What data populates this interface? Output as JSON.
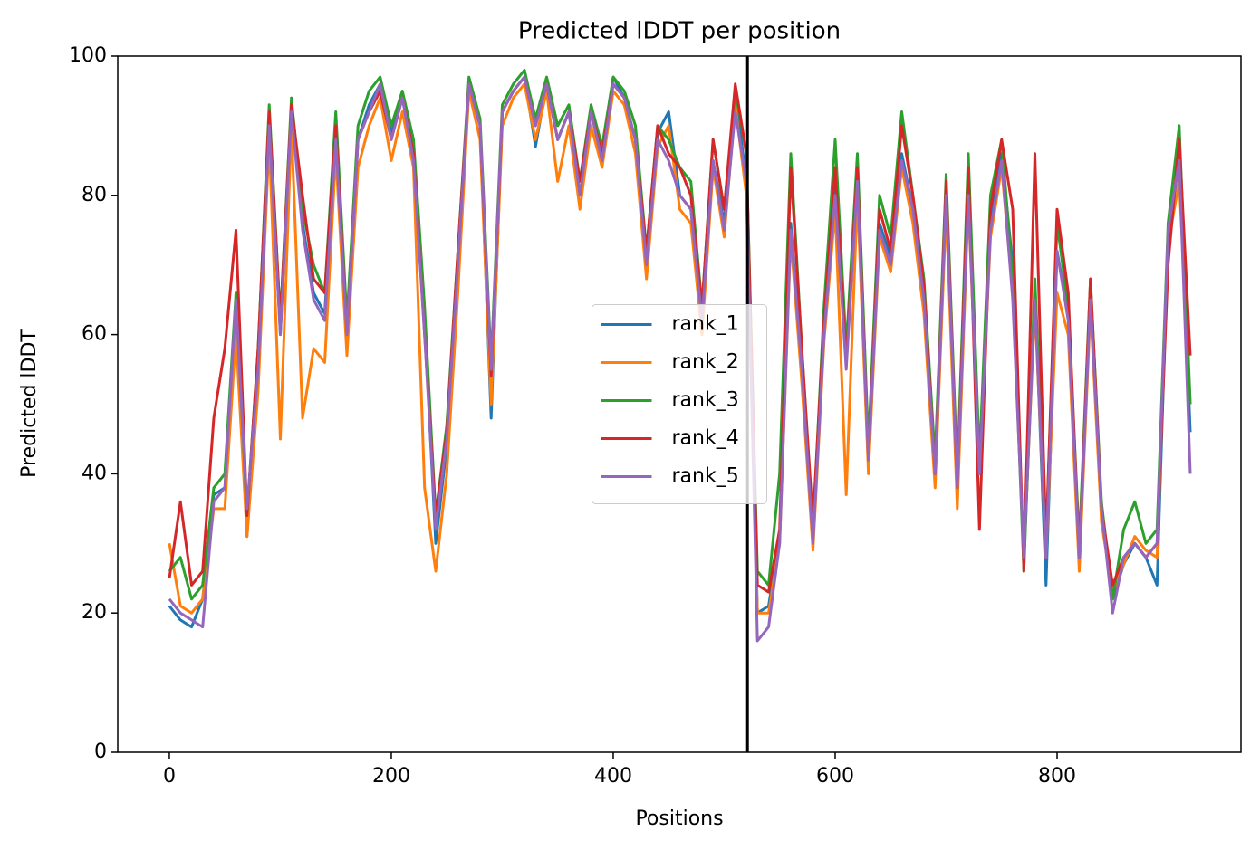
{
  "chart_data": {
    "type": "line",
    "title": "Predicted lDDT per position",
    "xlabel": "Positions",
    "ylabel": "Predicted lDDT",
    "x": [
      0,
      10,
      20,
      30,
      40,
      50,
      60,
      70,
      80,
      90,
      100,
      110,
      120,
      130,
      140,
      150,
      160,
      170,
      180,
      190,
      200,
      210,
      220,
      230,
      240,
      250,
      260,
      270,
      280,
      290,
      300,
      310,
      320,
      330,
      340,
      350,
      360,
      370,
      380,
      390,
      400,
      410,
      420,
      430,
      440,
      450,
      460,
      470,
      480,
      490,
      500,
      510,
      520,
      530,
      540,
      550,
      560,
      570,
      580,
      590,
      600,
      610,
      620,
      630,
      640,
      650,
      660,
      670,
      680,
      690,
      700,
      710,
      720,
      730,
      740,
      750,
      760,
      770,
      780,
      790,
      800,
      810,
      820,
      830,
      840,
      850,
      860,
      870,
      880,
      890,
      900,
      910,
      920
    ],
    "series": [
      {
        "name": "rank_1",
        "color": "#1f77b4",
        "values": [
          21,
          19,
          18,
          22,
          37,
          38,
          64,
          31,
          55,
          91,
          60,
          93,
          76,
          66,
          63,
          90,
          58,
          88,
          93,
          96,
          89,
          94,
          86,
          62,
          30,
          44,
          70,
          96,
          90,
          48,
          92,
          95,
          97,
          87,
          96,
          88,
          92,
          80,
          92,
          85,
          97,
          94,
          88,
          70,
          89,
          92,
          80,
          78,
          62,
          85,
          76,
          95,
          82,
          20,
          21,
          31,
          76,
          55,
          30,
          61,
          81,
          56,
          83,
          42,
          76,
          71,
          86,
          78,
          65,
          39,
          80,
          37,
          81,
          40,
          76,
          86,
          70,
          27,
          66,
          24,
          72,
          63,
          27,
          66,
          34,
          22,
          27,
          30,
          28,
          24,
          74,
          85,
          46
        ]
      },
      {
        "name": "rank_2",
        "color": "#ff7f0e",
        "values": [
          30,
          21,
          20,
          22,
          35,
          35,
          60,
          31,
          52,
          88,
          45,
          90,
          48,
          58,
          56,
          86,
          57,
          84,
          90,
          94,
          85,
          92,
          84,
          38,
          26,
          40,
          66,
          95,
          88,
          50,
          90,
          94,
          96,
          88,
          95,
          82,
          90,
          78,
          90,
          84,
          95,
          93,
          86,
          68,
          87,
          90,
          78,
          76,
          60,
          84,
          74,
          93,
          80,
          20,
          20,
          30,
          74,
          53,
          29,
          59,
          78,
          37,
          80,
          40,
          74,
          69,
          84,
          76,
          63,
          38,
          78,
          35,
          79,
          40,
          74,
          84,
          66,
          28,
          64,
          28,
          66,
          60,
          26,
          64,
          33,
          23,
          27,
          31,
          29,
          28,
          73,
          82,
          50
        ]
      },
      {
        "name": "rank_3",
        "color": "#2ca02c",
        "values": [
          26,
          28,
          22,
          24,
          38,
          40,
          66,
          34,
          58,
          93,
          62,
          94,
          78,
          70,
          66,
          92,
          62,
          90,
          95,
          97,
          90,
          95,
          88,
          64,
          34,
          47,
          72,
          97,
          91,
          56,
          93,
          96,
          98,
          91,
          97,
          90,
          93,
          82,
          93,
          87,
          97,
          95,
          90,
          72,
          90,
          88,
          84,
          82,
          64,
          88,
          78,
          95,
          86,
          26,
          24,
          40,
          86,
          58,
          32,
          64,
          88,
          58,
          86,
          44,
          80,
          74,
          92,
          80,
          68,
          42,
          83,
          40,
          86,
          42,
          80,
          88,
          68,
          26,
          68,
          30,
          76,
          64,
          30,
          68,
          36,
          22,
          32,
          36,
          30,
          32,
          76,
          90,
          50
        ]
      },
      {
        "name": "rank_4",
        "color": "#d62728",
        "values": [
          25,
          36,
          24,
          26,
          48,
          58,
          75,
          34,
          58,
          92,
          62,
          93,
          80,
          68,
          66,
          90,
          60,
          88,
          92,
          95,
          88,
          94,
          86,
          60,
          34,
          46,
          72,
          96,
          90,
          54,
          92,
          95,
          97,
          90,
          96,
          88,
          92,
          82,
          92,
          86,
          96,
          94,
          88,
          72,
          90,
          86,
          84,
          80,
          64,
          88,
          78,
          96,
          86,
          24,
          23,
          32,
          84,
          58,
          33,
          62,
          84,
          56,
          84,
          42,
          78,
          72,
          90,
          80,
          67,
          40,
          82,
          38,
          84,
          32,
          78,
          88,
          78,
          26,
          86,
          30,
          78,
          66,
          28,
          68,
          35,
          24,
          28,
          30,
          28,
          30,
          70,
          88,
          57
        ]
      },
      {
        "name": "rank_5",
        "color": "#9467bd",
        "values": [
          22,
          20,
          19,
          18,
          36,
          38,
          65,
          35,
          55,
          90,
          60,
          92,
          75,
          65,
          62,
          88,
          60,
          88,
          92,
          96,
          88,
          94,
          85,
          60,
          32,
          45,
          70,
          96,
          90,
          55,
          92,
          95,
          97,
          90,
          96,
          88,
          92,
          80,
          92,
          85,
          96,
          94,
          88,
          70,
          88,
          85,
          80,
          78,
          62,
          85,
          75,
          92,
          82,
          16,
          18,
          30,
          75,
          55,
          30,
          60,
          80,
          55,
          82,
          42,
          75,
          70,
          85,
          78,
          65,
          40,
          80,
          38,
          80,
          40,
          75,
          85,
          65,
          28,
          65,
          28,
          72,
          62,
          28,
          65,
          35,
          20,
          28,
          30,
          28,
          30,
          75,
          85,
          40
        ]
      }
    ],
    "vline": 521,
    "vline_color": "#000000",
    "xlim": [
      -46.5,
      965.7
    ],
    "ylim": [
      0,
      100
    ],
    "xticks": [
      0,
      200,
      400,
      600,
      800
    ],
    "yticks": [
      0,
      20,
      40,
      60,
      80,
      100
    ],
    "legend": "center",
    "grid": false
  }
}
